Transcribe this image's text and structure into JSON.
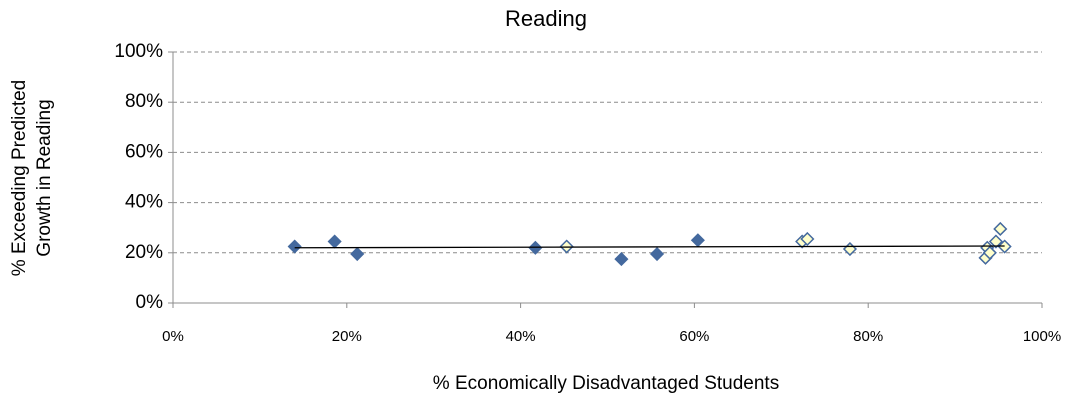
{
  "chart_data": {
    "type": "scatter",
    "title": "Reading",
    "x_label": "% Economically Disadvantaged Students",
    "y_label": [
      "% Exceeding Predicted",
      "Growth in Reading"
    ],
    "series": [
      {
        "color": "#44699e",
        "fill": "#44699e",
        "x": [
          14,
          18.6,
          21.2,
          41.7,
          51.6,
          55.7,
          60.4
        ],
        "values": [
          22.5,
          24.5,
          19.5,
          22,
          17.5,
          19.5,
          25
        ]
      },
      {
        "color": "#44699e",
        "fill": "#ffffcc",
        "x": [
          45.3,
          72.4,
          73,
          77.9,
          95.2,
          93.7,
          93.5,
          95.7,
          94.7,
          94
        ],
        "values": [
          22.5,
          24.5,
          25.5,
          21.5,
          29.5,
          22,
          18,
          22.5,
          24.5,
          20
        ]
      }
    ],
    "trendline": {
      "x": [
        14,
        95.7
      ],
      "values": [
        22,
        22.7
      ],
      "color": "#000000"
    },
    "xlim": [
      0,
      100
    ],
    "ylim": [
      0,
      100
    ],
    "xticks": [
      {
        "value": 0,
        "label": "0%"
      },
      {
        "value": 20,
        "label": "20%"
      },
      {
        "value": 40,
        "label": "40%"
      },
      {
        "value": 60,
        "label": "60%"
      },
      {
        "value": 80,
        "label": "80%"
      },
      {
        "value": 100,
        "label": "100%"
      }
    ],
    "yticks": [
      {
        "value": 0,
        "label": "0%"
      },
      {
        "value": 20,
        "label": "20%"
      },
      {
        "value": 40,
        "label": "40%"
      },
      {
        "value": 60,
        "label": "60%"
      },
      {
        "value": 80,
        "label": "80%"
      },
      {
        "value": 100,
        "label": "100%"
      }
    ],
    "grid": true
  }
}
